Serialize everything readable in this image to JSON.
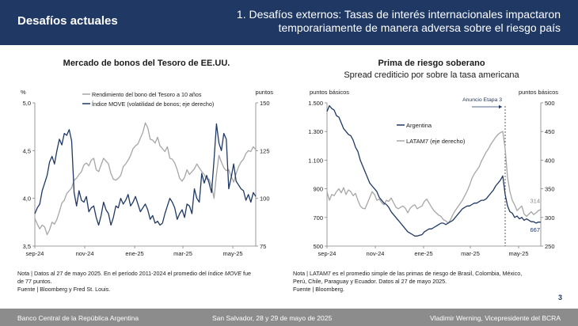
{
  "header": {
    "left_title": "Desafíos actuales",
    "right_title_line1": "1. Desafíos externos: Tasas de interés internacionales impactaron",
    "right_title_line2": "temporariamente de manera adversa sobre el riesgo país"
  },
  "left_panel": {
    "title": "Mercado de bonos del Tesoro de EE.UU.",
    "note_line1_a": "Nota | Datos al 27 de mayo 2025. En el período 2011-2024 el promedio del índice ",
    "note_line1_em": "MOVE",
    "note_line1_b": " fue",
    "note_line2": "de 77 puntos.",
    "note_line3": "Fuente | Bloomberg y Fred St. Louis."
  },
  "right_panel": {
    "title": "Prima de riesgo soberano",
    "subtitle": "Spread crediticio por sobre la tasa americana",
    "note_line1": "Nota | LATAM7 es el promedio simple de las primas de riesgo de Brasil, Colombia, México,",
    "note_line2": "Perú, Chile, Paraguay y Ecuador. Datos al 27 de  mayo 2025.",
    "note_line3": "Fuente | Bloomberg."
  },
  "footer": {
    "left": "Banco Central de la República Argentina",
    "center": "San Salvador, 28 y 29 de mayo de 2025",
    "right": "Vladimir Werning, Vicepresidente del BCRA"
  },
  "page_number": "3",
  "colors": {
    "header_bg": "#1f3864",
    "dark_series": "#1f3864",
    "gray_series": "#a6a6a6",
    "footer_bg": "#8c8c8c"
  },
  "chart_data": [
    {
      "type": "line",
      "title": "Mercado de bonos del Tesoro de EE.UU.",
      "left_axis_label": "%",
      "right_axis_label": "puntos",
      "ylim_left": [
        3.5,
        5.0
      ],
      "ylim_right": [
        75,
        150
      ],
      "yticks_left": [
        "3,5",
        "4,0",
        "4,5",
        "5,0"
      ],
      "yticks_right": [
        "75",
        "100",
        "125",
        "150"
      ],
      "xticks": [
        "sep-24",
        "nov-24",
        "ene-25",
        "mar-25",
        "may-25"
      ],
      "legend": [
        "Rendimiento del bono del Tesoro a 10 años",
        "Índice MOVE (volatilidad de bonos; eje derecho)"
      ],
      "series": [
        {
          "name": "Rendimiento del bono del Tesoro a 10 años",
          "axis": "left",
          "color": "#a6a6a6",
          "x": [
            0,
            3,
            6,
            9,
            12,
            15,
            18,
            21,
            24,
            27,
            30,
            33,
            36,
            39,
            42,
            45,
            48,
            51,
            54,
            57,
            60,
            63,
            66,
            69,
            72,
            75,
            78,
            81,
            84,
            87,
            90,
            93,
            96,
            99,
            102,
            105,
            108,
            111,
            114,
            117,
            120,
            123,
            126,
            129,
            132,
            135,
            138,
            141,
            144,
            147,
            150,
            153,
            156,
            159,
            162,
            165,
            168,
            171,
            174,
            177,
            180,
            183,
            186,
            189,
            192,
            195,
            198,
            201,
            204,
            207,
            210,
            213,
            216,
            219,
            222,
            225,
            228,
            231,
            234,
            237,
            240,
            243,
            246,
            249,
            252,
            255,
            258,
            261,
            264,
            267,
            270
          ],
          "values": [
            3.79,
            3.73,
            3.68,
            3.72,
            3.7,
            3.62,
            3.67,
            3.75,
            3.73,
            3.78,
            3.86,
            3.95,
            3.98,
            4.05,
            4.08,
            4.11,
            4.19,
            4.21,
            4.25,
            4.28,
            4.35,
            4.37,
            4.34,
            4.4,
            4.42,
            4.3,
            4.28,
            4.35,
            4.42,
            4.39,
            4.36,
            4.26,
            4.2,
            4.19,
            4.21,
            4.24,
            4.33,
            4.36,
            4.4,
            4.45,
            4.52,
            4.55,
            4.57,
            4.63,
            4.69,
            4.79,
            4.74,
            4.62,
            4.61,
            4.58,
            4.64,
            4.55,
            4.52,
            4.49,
            4.54,
            4.42,
            4.41,
            4.37,
            4.3,
            4.21,
            4.18,
            4.22,
            4.3,
            4.25,
            4.28,
            4.31,
            4.36,
            4.32,
            4.28,
            4.25,
            4.2,
            4.2,
            4.13,
            4.0,
            4.25,
            4.45,
            4.38,
            4.32,
            4.29,
            4.3,
            4.23,
            4.17,
            4.26,
            4.33,
            4.38,
            4.41,
            4.47,
            4.5,
            4.49,
            4.54,
            4.51
          ]
        },
        {
          "name": "Índice MOVE (volatilidad de bonos; eje derecho)",
          "axis": "right",
          "color": "#1f3864",
          "x": [
            0,
            3,
            6,
            9,
            12,
            15,
            18,
            21,
            24,
            27,
            30,
            33,
            36,
            39,
            42,
            45,
            48,
            51,
            54,
            57,
            60,
            63,
            66,
            69,
            72,
            75,
            78,
            81,
            84,
            87,
            90,
            93,
            96,
            99,
            102,
            105,
            108,
            111,
            114,
            117,
            120,
            123,
            126,
            129,
            132,
            135,
            138,
            141,
            144,
            147,
            150,
            153,
            156,
            159,
            162,
            165,
            168,
            171,
            174,
            177,
            180,
            183,
            186,
            189,
            192,
            195,
            198,
            201,
            204,
            207,
            210,
            213,
            216,
            219,
            222,
            225,
            228,
            231,
            234,
            237,
            240,
            243,
            246,
            249,
            252,
            255,
            258,
            261,
            264,
            267,
            270
          ],
          "values": [
            92,
            95,
            97,
            104,
            108,
            112,
            119,
            122,
            118,
            125,
            131,
            128,
            134,
            133,
            136,
            130,
            103,
            96,
            104,
            99,
            98,
            101,
            93,
            95,
            96,
            90,
            86,
            91,
            98,
            94,
            92,
            86,
            90,
            96,
            95,
            100,
            97,
            99,
            102,
            96,
            98,
            101,
            97,
            93,
            95,
            97,
            94,
            89,
            91,
            87,
            88,
            86,
            87,
            92,
            96,
            100,
            98,
            95,
            89,
            92,
            94,
            90,
            97,
            96,
            92,
            105,
            100,
            98,
            113,
            108,
            112,
            108,
            103,
            120,
            139,
            129,
            125,
            134,
            131,
            105,
            111,
            118,
            109,
            107,
            105,
            104,
            99,
            102,
            98,
            103,
            101
          ]
        }
      ]
    },
    {
      "type": "line",
      "title": "Prima de riesgo soberano",
      "subtitle": "Spread crediticio por sobre la tasa americana",
      "left_axis_label": "puntos básicos",
      "right_axis_label": "puntos básicos",
      "ylim_left": [
        500,
        1500
      ],
      "ylim_right": [
        250,
        500
      ],
      "yticks_left": [
        "500",
        "700",
        "900",
        "1.100",
        "1.300",
        "1.500"
      ],
      "yticks_right": [
        "250",
        "300",
        "350",
        "400",
        "450",
        "500"
      ],
      "xticks": [
        "sep-24",
        "nov-24",
        "ene-25",
        "mar-25",
        "may-25"
      ],
      "legend": [
        "Argentina",
        "LATAM7 (eje derecho)"
      ],
      "annotation": {
        "label": "Anuncio Etapa 3",
        "x": 225
      },
      "end_labels": {
        "argentina": "667",
        "latam7": "314"
      },
      "series": [
        {
          "name": "Argentina",
          "axis": "left",
          "color": "#1f3864",
          "x": [
            0,
            3,
            6,
            9,
            12,
            15,
            18,
            21,
            24,
            27,
            30,
            33,
            36,
            39,
            42,
            45,
            48,
            51,
            54,
            57,
            60,
            63,
            66,
            69,
            72,
            75,
            78,
            81,
            84,
            87,
            90,
            93,
            96,
            99,
            102,
            105,
            108,
            111,
            114,
            117,
            120,
            123,
            126,
            129,
            132,
            135,
            138,
            141,
            144,
            147,
            150,
            153,
            156,
            159,
            162,
            165,
            168,
            171,
            174,
            177,
            180,
            183,
            186,
            189,
            192,
            195,
            198,
            201,
            204,
            207,
            210,
            213,
            216,
            219,
            222,
            225,
            228,
            231,
            234,
            237,
            240,
            243,
            246,
            249,
            252,
            255,
            258,
            261,
            264,
            267,
            270
          ],
          "values": [
            1440,
            1480,
            1460,
            1450,
            1410,
            1400,
            1360,
            1320,
            1300,
            1280,
            1270,
            1240,
            1190,
            1160,
            1100,
            1060,
            1020,
            980,
            940,
            920,
            900,
            880,
            840,
            820,
            800,
            790,
            770,
            740,
            720,
            700,
            680,
            660,
            640,
            620,
            600,
            590,
            580,
            570,
            570,
            575,
            580,
            600,
            610,
            620,
            620,
            630,
            640,
            650,
            660,
            660,
            650,
            660,
            670,
            680,
            700,
            720,
            740,
            760,
            770,
            780,
            780,
            790,
            800,
            800,
            810,
            820,
            820,
            830,
            850,
            870,
            890,
            920,
            940,
            960,
            990,
            860,
            780,
            740,
            730,
            700,
            710,
            690,
            700,
            680,
            690,
            680,
            670,
            670,
            660,
            668,
            667
          ]
        },
        {
          "name": "LATAM7 (eje derecho)",
          "axis": "right",
          "color": "#a6a6a6",
          "x": [
            0,
            3,
            6,
            9,
            12,
            15,
            18,
            21,
            24,
            27,
            30,
            33,
            36,
            39,
            42,
            45,
            48,
            51,
            54,
            57,
            60,
            63,
            66,
            69,
            72,
            75,
            78,
            81,
            84,
            87,
            90,
            93,
            96,
            99,
            102,
            105,
            108,
            111,
            114,
            117,
            120,
            123,
            126,
            129,
            132,
            135,
            138,
            141,
            144,
            147,
            150,
            153,
            156,
            159,
            162,
            165,
            168,
            171,
            174,
            177,
            180,
            183,
            186,
            189,
            192,
            195,
            198,
            201,
            204,
            207,
            210,
            213,
            216,
            219,
            222,
            225,
            228,
            231,
            234,
            237,
            240,
            243,
            246,
            249,
            252,
            255,
            258,
            261,
            264,
            267,
            270
          ],
          "values": [
            345,
            330,
            340,
            338,
            345,
            350,
            343,
            352,
            340,
            348,
            345,
            338,
            342,
            330,
            320,
            316,
            315,
            325,
            335,
            345,
            340,
            330,
            332,
            326,
            322,
            330,
            328,
            334,
            326,
            318,
            315,
            318,
            320,
            316,
            308,
            316,
            320,
            322,
            315,
            318,
            320,
            328,
            332,
            325,
            318,
            312,
            308,
            304,
            302,
            296,
            294,
            290,
            296,
            305,
            312,
            318,
            324,
            330,
            338,
            346,
            356,
            368,
            376,
            382,
            388,
            398,
            406,
            414,
            420,
            428,
            434,
            440,
            445,
            448,
            450,
            420,
            370,
            345,
            330,
            322,
            312,
            316,
            320,
            306,
            302,
            306,
            310,
            305,
            308,
            312,
            314
          ]
        }
      ]
    }
  ]
}
